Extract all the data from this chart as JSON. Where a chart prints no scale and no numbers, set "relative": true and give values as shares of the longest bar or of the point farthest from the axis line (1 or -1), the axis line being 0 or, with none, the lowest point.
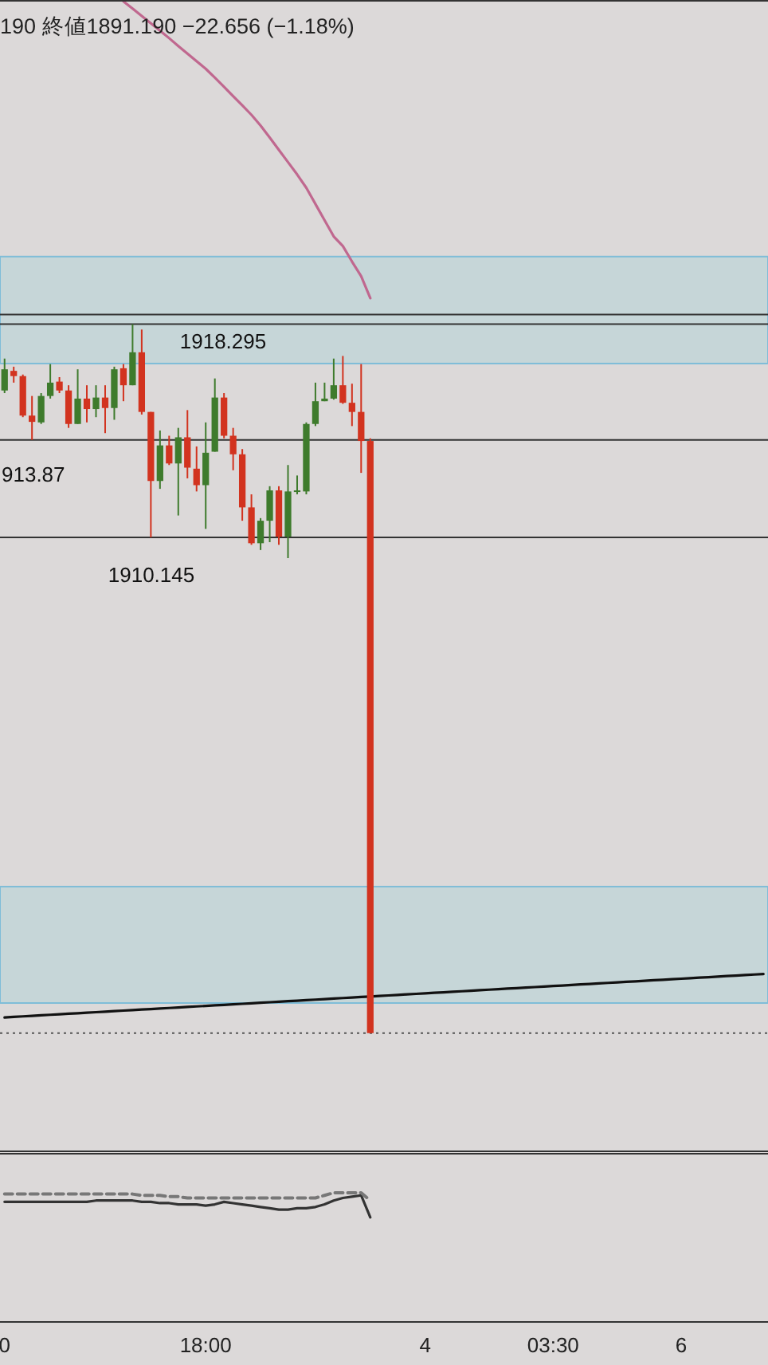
{
  "chart_data": [
    {
      "type": "candlestick",
      "title": "190  終値1891.190  −22.656 (−1.18%)",
      "ylim": [
        1886.67,
        1930.69
      ],
      "tick_labels": false,
      "categories": [
        null,
        null,
        null,
        null,
        null,
        null,
        null,
        null,
        null,
        null,
        null,
        null,
        null,
        null,
        null,
        null,
        null,
        null,
        null,
        null,
        null,
        null,
        null,
        null,
        null,
        null,
        null,
        null,
        null,
        null,
        null,
        null,
        null,
        null,
        null,
        null,
        null,
        null,
        null,
        null,
        null,
        null,
        null,
        null,
        null,
        null,
        null,
        null,
        null,
        null,
        null,
        null,
        null,
        null,
        null,
        null,
        null,
        null,
        null,
        null,
        null,
        null,
        null,
        null,
        null,
        null,
        null,
        null,
        null,
        null,
        null,
        null,
        null,
        null,
        null,
        null,
        null,
        null,
        null,
        null,
        null,
        null,
        null,
        null
      ],
      "annotations": [
        "913.87"
      ],
      "bands": [
        {
          "axis": "y",
          "from": 1916.79,
          "to": 1920.88,
          "color": "#c6d6d8"
        },
        {
          "axis": "y",
          "from": 1892.34,
          "to": 1896.79,
          "color": "#c6d6d8"
        }
      ],
      "ref_lines": [
        {
          "axis": "y",
          "value": 1918.66,
          "color": "#333333"
        },
        {
          "axis": "y",
          "value": 1918.295,
          "label": "1918.295",
          "color": "#333333"
        },
        {
          "axis": "y",
          "value": 1913.87,
          "color": "#333333"
        },
        {
          "axis": "y",
          "value": 1910.145,
          "label": "1910.145",
          "color": "#333333"
        },
        {
          "axis": "y",
          "value": 1891.19,
          "color": "#555555",
          "line_style": "dotted"
        }
      ],
      "series": [
        {
          "type": "line",
          "color": "#c0688f",
          "values": [
            null,
            null,
            null,
            null,
            null,
            null,
            null,
            null,
            null,
            null,
            null,
            null,
            null,
            1930.64,
            1930.36,
            1930.08,
            1929.8,
            1929.52,
            1929.23,
            1928.93,
            1928.64,
            1928.35,
            1928.06,
            1927.72,
            1927.37,
            1927.01,
            1926.66,
            1926.3,
            1925.89,
            1925.43,
            1924.96,
            1924.49,
            1924.02,
            1923.51,
            1922.89,
            1922.27,
            1921.65,
            1921.28,
            1920.69,
            1920.13,
            1919.29,
            null,
            null,
            null,
            null,
            null,
            null,
            null,
            null,
            null,
            null,
            null,
            null,
            null,
            null,
            null,
            null,
            null,
            null,
            null,
            null,
            null,
            null,
            null,
            null,
            null,
            null,
            null,
            null,
            null,
            null,
            null,
            null,
            null,
            null,
            null,
            null,
            null,
            null,
            null,
            null,
            null,
            null,
            null
          ]
        },
        {
          "type": "line",
          "color": "#111111",
          "values": [
            1891.79,
            1891.81,
            1891.83,
            1891.85,
            1891.87,
            1891.89,
            1891.91,
            1891.93,
            1891.95,
            1891.97,
            1891.99,
            1892.01,
            1892.03,
            1892.05,
            1892.07,
            1892.09,
            1892.11,
            1892.13,
            1892.15,
            1892.17,
            1892.19,
            1892.21,
            1892.23,
            1892.25,
            1892.27,
            1892.29,
            1892.31,
            1892.33,
            1892.35,
            1892.37,
            1892.39,
            1892.41,
            1892.43,
            1892.45,
            1892.47,
            1892.49,
            1892.51,
            1892.53,
            1892.55,
            1892.57,
            1892.59,
            1892.61,
            1892.63,
            1892.65,
            1892.67,
            1892.69,
            1892.71,
            1892.73,
            1892.75,
            1892.77,
            1892.79,
            1892.81,
            1892.83,
            1892.85,
            1892.87,
            1892.89,
            1892.91,
            1892.93,
            1892.95,
            1892.97,
            1892.99,
            1893.01,
            1893.03,
            1893.05,
            1893.07,
            1893.09,
            1893.11,
            1893.13,
            1893.15,
            1893.17,
            1893.19,
            1893.21,
            1893.23,
            1893.25,
            1893.27,
            1893.29,
            1893.31,
            1893.33,
            1893.35,
            1893.37,
            1893.39,
            1893.41,
            1893.43,
            1893.45
          ]
        },
        {
          "ohlc": [
            [
              1915.76,
              1916.98,
              1915.66,
              1916.57
            ],
            [
              1916.51,
              1916.67,
              1916.06,
              1916.31
            ],
            [
              1916.31,
              1916.37,
              1914.74,
              1914.8
            ],
            [
              1914.8,
              1915.55,
              1913.87,
              1914.56
            ],
            [
              1914.54,
              1915.66,
              1914.48,
              1915.55
            ],
            [
              1915.55,
              1916.77,
              1915.45,
              1916.06
            ],
            [
              1916.1,
              1916.27,
              1915.66,
              1915.76
            ],
            [
              1915.76,
              1915.96,
              1914.33,
              1914.48
            ],
            [
              1914.48,
              1916.57,
              1914.48,
              1915.45
            ],
            [
              1915.45,
              1915.96,
              1914.54,
              1915.05
            ],
            [
              1915.05,
              1915.96,
              1914.74,
              1915.49
            ],
            [
              1915.49,
              1915.96,
              1914.13,
              1915.09
            ],
            [
              1915.09,
              1916.67,
              1914.64,
              1916.57
            ],
            [
              1916.61,
              1916.77,
              1915.35,
              1915.96
            ],
            [
              1915.96,
              1918.295,
              1915.96,
              1917.22
            ],
            [
              1917.22,
              1918.09,
              1914.84,
              1914.94
            ],
            [
              1914.94,
              1914.94,
              1910.145,
              1912.3
            ],
            [
              1912.3,
              1914.23,
              1912,
              1913.66
            ],
            [
              1913.66,
              1914.03,
              1912.91,
              1912.97
            ],
            [
              1912.97,
              1914.33,
              1910.98,
              1913.97
            ],
            [
              1913.97,
              1915.01,
              1912.4,
              1912.81
            ],
            [
              1912.77,
              1913.62,
              1911.9,
              1912.14
            ],
            [
              1912.14,
              1914.54,
              1910.47,
              1913.38
            ],
            [
              1913.42,
              1916.22,
              1913.42,
              1915.49
            ],
            [
              1915.49,
              1915.66,
              1913.93,
              1914.03
            ],
            [
              1914.03,
              1914.33,
              1912.71,
              1913.32
            ],
            [
              1913.32,
              1913.52,
              1910.78,
              1911.29
            ],
            [
              1911.29,
              1911.79,
              1909.86,
              1909.92
            ],
            [
              1909.92,
              1910.88,
              1909.66,
              1910.78
            ],
            [
              1910.78,
              1912.1,
              1909.96,
              1911.94
            ],
            [
              1911.94,
              1912.1,
              1909.86,
              1910.17
            ],
            [
              1910.17,
              1912.91,
              1909.35,
              1911.9
            ],
            [
              1911.9,
              1912.51,
              1911.79,
              1911.94
            ],
            [
              1911.9,
              1914.54,
              1911.79,
              1914.48
            ],
            [
              1914.48,
              1916.06,
              1914.4,
              1915.35
            ],
            [
              1915.35,
              1916.06,
              1915.35,
              1915.45
            ],
            [
              1915.45,
              1916.98,
              1915.41,
              1915.96
            ],
            [
              1915.96,
              1917.08,
              1915.25,
              1915.29
            ],
            [
              1915.29,
              1916.02,
              1914.4,
              1914.94
            ],
            [
              1914.94,
              1916.77,
              1912.61,
              1913.83
            ],
            [
              1913.83,
              1913.93,
              1891.19,
              1891.19
            ],
            null,
            null,
            null,
            null,
            null,
            null,
            null,
            null,
            null,
            null,
            null,
            null,
            null,
            null,
            null,
            null,
            null,
            null,
            null,
            null,
            null,
            null,
            null,
            null,
            null,
            null,
            null,
            null,
            null,
            null,
            null,
            null,
            null,
            null,
            null,
            null,
            null,
            null,
            null,
            null,
            null,
            null,
            null
          ],
          "colors": [
            "#3e7b2c",
            "#d2331f",
            "#d2331f",
            "#d2331f",
            "#3e7b2c",
            "#3e7b2c",
            "#d2331f",
            "#d2331f",
            "#3e7b2c",
            "#d2331f",
            "#3e7b2c",
            "#d2331f",
            "#3e7b2c",
            "#d2331f",
            "#3e7b2c",
            "#d2331f",
            "#d2331f",
            "#3e7b2c",
            "#d2331f",
            "#3e7b2c",
            "#d2331f",
            "#d2331f",
            "#3e7b2c",
            "#3e7b2c",
            "#d2331f",
            "#d2331f",
            "#d2331f",
            "#d2331f",
            "#3e7b2c",
            "#3e7b2c",
            "#d2331f",
            "#3e7b2c",
            "#3e7b2c",
            "#3e7b2c",
            "#3e7b2c",
            "#3e7b2c",
            "#3e7b2c",
            "#d2331f",
            "#d2331f",
            "#d2331f",
            "#d2331f",
            null,
            null,
            null,
            null,
            null,
            null,
            null,
            null,
            null,
            null,
            null,
            null,
            null,
            null,
            null,
            null,
            null,
            null,
            null,
            null,
            null,
            null,
            null,
            null,
            null,
            null,
            null,
            null,
            null,
            null,
            null,
            null,
            null,
            null,
            null,
            null,
            null,
            null,
            null,
            null,
            null,
            null,
            null
          ]
        }
      ]
    },
    {
      "type": "line",
      "relative": true,
      "tick_labels": "x",
      "categories": [
        "0",
        null,
        null,
        null,
        null,
        null,
        null,
        null,
        null,
        null,
        null,
        null,
        null,
        null,
        null,
        null,
        null,
        null,
        null,
        null,
        null,
        null,
        "18:00",
        null,
        null,
        null,
        null,
        null,
        null,
        null,
        null,
        null,
        null,
        null,
        null,
        null,
        null,
        null,
        null,
        null,
        null,
        null,
        null,
        null,
        null,
        null,
        "4",
        null,
        null,
        null,
        null,
        null,
        null,
        null,
        null,
        null,
        null,
        null,
        null,
        null,
        "03:30",
        null,
        null,
        null,
        null,
        null,
        null,
        null,
        null,
        null,
        null,
        null,
        null,
        null,
        "6",
        null,
        null,
        null,
        null,
        null,
        null,
        null,
        null,
        null
      ],
      "series": [
        {
          "color": "#333333",
          "line_style": "solid",
          "values": [
            0.93,
            0.93,
            0.93,
            0.93,
            0.93,
            0.93,
            0.93,
            0.93,
            0.93,
            0.93,
            0.94,
            0.94,
            0.94,
            0.94,
            0.94,
            0.93,
            0.93,
            0.92,
            0.92,
            0.91,
            0.91,
            0.91,
            0.9,
            0.91,
            0.93,
            0.92,
            0.91,
            0.9,
            0.89,
            0.88,
            0.87,
            0.87,
            0.88,
            0.88,
            0.89,
            0.91,
            0.94,
            0.96,
            0.97,
            0.98,
            0.81,
            null,
            null,
            null,
            null,
            null,
            null,
            null,
            null,
            null,
            null,
            null,
            null,
            null,
            null,
            null,
            null,
            null,
            null,
            null,
            null,
            null,
            null,
            null,
            null,
            null,
            null,
            null,
            null,
            null,
            null,
            null,
            null,
            null,
            null,
            null,
            null,
            null,
            null,
            null,
            null,
            null,
            null,
            null
          ]
        },
        {
          "color": "#777777",
          "line_style": "dashed",
          "values": [
            0.99,
            0.99,
            0.99,
            0.99,
            0.99,
            0.99,
            0.99,
            0.99,
            0.99,
            0.99,
            0.99,
            0.99,
            0.99,
            0.99,
            0.99,
            0.98,
            0.98,
            0.98,
            0.97,
            0.97,
            0.96,
            0.96,
            0.96,
            0.96,
            0.96,
            0.96,
            0.96,
            0.96,
            0.96,
            0.96,
            0.96,
            0.96,
            0.96,
            0.96,
            0.96,
            0.98,
            1,
            1,
            1,
            1,
            0.94,
            null,
            null,
            null,
            null,
            null,
            null,
            null,
            null,
            null,
            null,
            null,
            null,
            null,
            null,
            null,
            null,
            null,
            null,
            null,
            null,
            null,
            null,
            null,
            null,
            null,
            null,
            null,
            null,
            null,
            null,
            null,
            null,
            null,
            null,
            null,
            null,
            null,
            null,
            null,
            null,
            null,
            null,
            null
          ]
        }
      ]
    }
  ]
}
